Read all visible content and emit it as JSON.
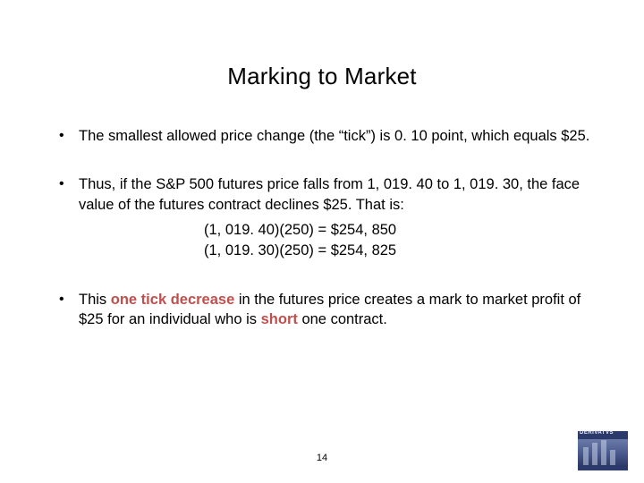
{
  "title": "Marking to Market",
  "bullets": {
    "b1": "The smallest allowed price change (the “tick”) is 0. 10 point, which equals $25.",
    "b2_intro": "Thus, if the S&P 500 futures price falls from 1, 019. 40 to 1, 019. 30, the face value of the futures contract declines $25. That is:",
    "b2_calc1": "(1, 019. 40)(250) = $254, 850",
    "b2_calc2": "(1, 019. 30)(250) = $254, 825",
    "b3_a": "This ",
    "b3_hl1": "one tick decrease",
    "b3_b": " in the futures price creates a mark to market profit of $25 for an individual who is ",
    "b3_hl2": "short",
    "b3_c": " one contract."
  },
  "page_number": "14",
  "logo_text": "DERIVATVS",
  "colors": {
    "highlight": "#c0504d",
    "text": "#000000",
    "background": "#ffffff"
  }
}
